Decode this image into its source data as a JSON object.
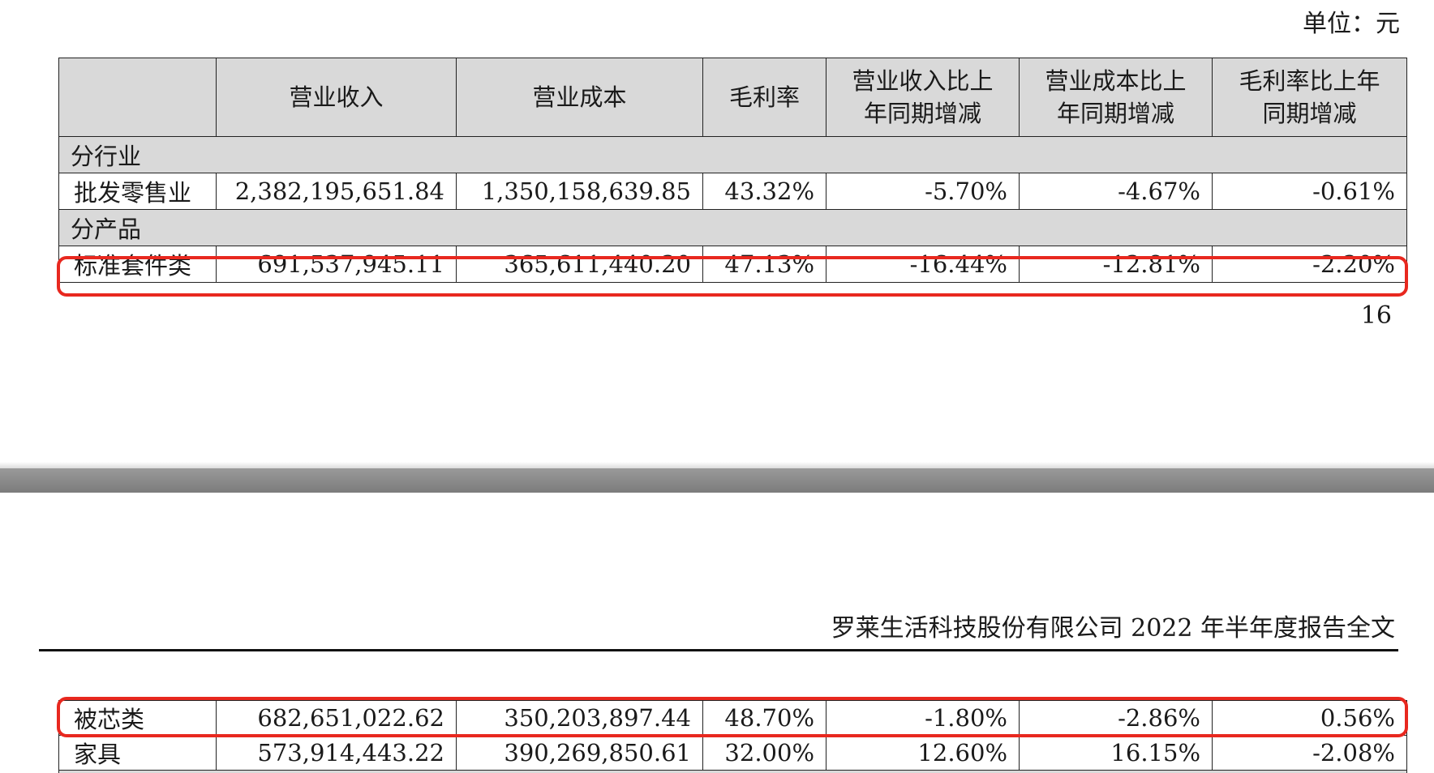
{
  "unit_label": "单位：元",
  "page_number": "16",
  "running_header": "罗莱生活科技股份有限公司 2022 年半年度报告全文",
  "columns": [
    "",
    "营业收入",
    "营业成本",
    "毛利率",
    "营业收入比上\n年同期增减",
    "营业成本比上\n年同期增减",
    "毛利率比上年\n同期增减"
  ],
  "sections": {
    "by_industry": "分行业",
    "by_product": "分产品"
  },
  "rows": {
    "wholesale_retail": [
      "批发零售业",
      "2,382,195,651.84",
      "1,350,158,639.85",
      "43.32%",
      "-5.70%",
      "-4.67%",
      "-0.61%"
    ],
    "standard_kits": [
      "标准套件类",
      "691,537,945.11",
      "365,611,440.20",
      "47.13%",
      "-16.44%",
      "-12.81%",
      "-2.20%"
    ],
    "core_products": [
      "被芯类",
      "682,651,022.62",
      "350,203,897.44",
      "48.70%",
      "-1.80%",
      "-2.86%",
      "0.56%"
    ],
    "furniture": [
      "家具",
      "573,914,443.22",
      "390,269,850.61",
      "32.00%",
      "12.60%",
      "16.15%",
      "-2.08%"
    ]
  },
  "highlight_color": "#e8281f"
}
